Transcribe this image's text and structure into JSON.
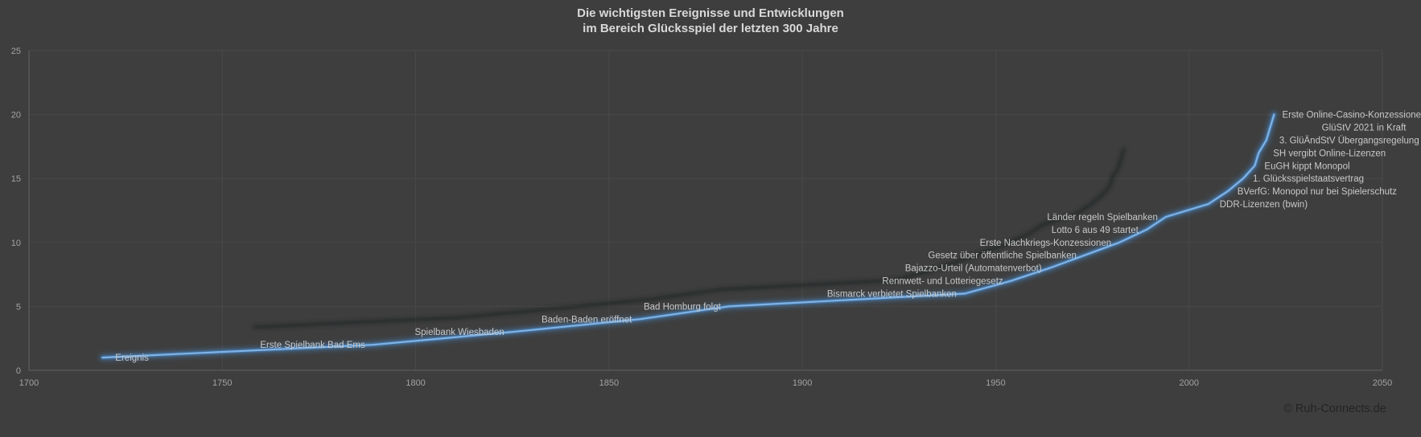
{
  "title": {
    "line1": "Die wichtigsten Ereignisse und Entwicklungen",
    "line2": "im Bereich Glücksspiel der letzten 300 Jahre"
  },
  "watermark": "© Ruh-Connects.de",
  "colors": {
    "background": "#3e3e3e",
    "grid": "#494949",
    "axis": "#5c5c5c",
    "tick_text": "#a3a3a3",
    "label_text": "#c9c9c9",
    "title_text": "#d9d9d9",
    "line": "#7fb2e5",
    "glow": "#4a8fd4",
    "shadow": "#232527",
    "watermark_text": "#242424"
  },
  "chart_data": {
    "type": "line",
    "series_name": "Ereignis",
    "title": "Die wichtigsten Ereignisse und Entwicklungen im Bereich Glücksspiel der letzten 300 Jahre",
    "xlabel": "",
    "ylabel": "",
    "xlim": [
      1700,
      2050
    ],
    "ylim": [
      0,
      25
    ],
    "x_ticks": [
      1700,
      1750,
      1800,
      1850,
      1900,
      1950,
      2000,
      2050
    ],
    "y_ticks": [
      0,
      5,
      10,
      15,
      20,
      25
    ],
    "grid": true,
    "legend_position": "none",
    "line_style": "blue line with outer glow and dark perspective shadow, no markers",
    "events": [
      {
        "label": "Ereignis",
        "year": 1719,
        "value": 1,
        "align": "start",
        "dx": 16
      },
      {
        "label": "Erste Spielbank Bad Ems",
        "year": 1789,
        "value": 2,
        "align": "end",
        "dx": -10
      },
      {
        "label": "Spielbank Wiesbaden",
        "year": 1825,
        "value": 3,
        "align": "end",
        "dx": -10
      },
      {
        "label": "Baden-Baden eröffnet",
        "year": 1858,
        "value": 4,
        "align": "end",
        "dx": -10
      },
      {
        "label": "Bad Homburg folgt",
        "year": 1881,
        "value": 5,
        "align": "end",
        "dx": -10
      },
      {
        "label": "Bismarck verbietet Spielbanken",
        "year": 1942,
        "value": 6,
        "align": "end",
        "dx": -10
      },
      {
        "label": "Rennwett- und Lotteriegesetz",
        "year": 1954,
        "value": 7,
        "align": "end",
        "dx": -10
      },
      {
        "label": "Bajazzo-Urteil (Automatenverbot)",
        "year": 1964,
        "value": 8,
        "align": "end",
        "dx": -10
      },
      {
        "label": "Gesetz über öffentliche Spielbanken",
        "year": 1973,
        "value": 9,
        "align": "end",
        "dx": -10
      },
      {
        "label": "Erste Nachkriegs-Konzessionen",
        "year": 1982,
        "value": 10,
        "align": "end",
        "dx": -10
      },
      {
        "label": "Lotto 6 aus 49 startet",
        "year": 1989,
        "value": 11,
        "align": "end",
        "dx": -10
      },
      {
        "label": "Länder regeln Spielbanken",
        "year": 1994,
        "value": 12,
        "align": "end",
        "dx": -10
      },
      {
        "label": "DDR-Lizenzen (bwin)",
        "year": 2005,
        "value": 13,
        "align": "start",
        "dx": 14
      },
      {
        "label": "BVerfG: Monopol nur bei Spielerschutz",
        "year": 2010,
        "value": 14,
        "align": "start",
        "dx": 12
      },
      {
        "label": "1. Glücksspielstaatsvertrag",
        "year": 2014,
        "value": 15,
        "align": "start",
        "dx": 12
      },
      {
        "label": "EuGH kippt Monopol",
        "year": 2017,
        "value": 16,
        "align": "start",
        "dx": 12
      },
      {
        "label": "SH vergibt Online-Lizenzen",
        "year": 2018,
        "value": 17,
        "align": "start",
        "dx": 18
      },
      {
        "label": "3. GlüÄndStV Übergangsregelung",
        "year": 2020,
        "value": 18,
        "align": "start",
        "dx": 16
      },
      {
        "label": "GlüStV 2021 in Kraft",
        "year": 2021,
        "value": 19,
        "align": "start",
        "dx": 64
      },
      {
        "label": "Erste Online-Casino-Konzessionen",
        "year": 2022,
        "value": 20,
        "align": "start",
        "dx": 10
      }
    ]
  }
}
